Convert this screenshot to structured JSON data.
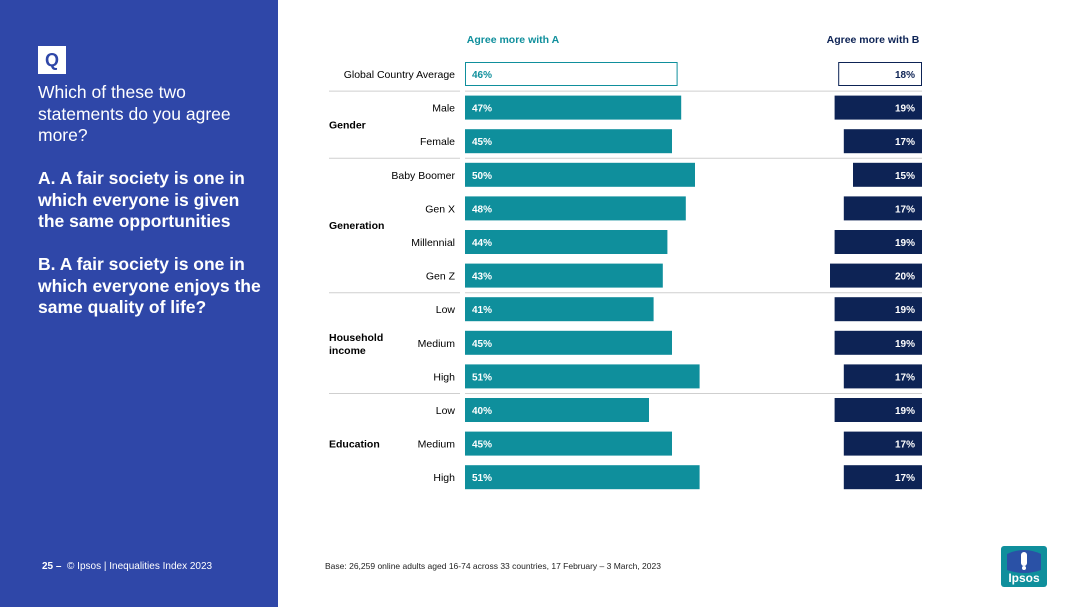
{
  "question": {
    "badge": "Q",
    "text": "Which of these two statements do you agree more?",
    "statement_a": "A. A fair society is one in which everyone is given the same opportunities",
    "statement_b": "B. A fair society is one in which everyone enjoys the same quality of life?"
  },
  "footer": {
    "page_number": "25 –",
    "copyright": "© Ipsos | Inequalities Index 2023",
    "base": "Base: 26,259 online adults aged 16-74 across 33 countries, 17 February – 3 March, 2023",
    "logo_text": "Ipsos"
  },
  "colors": {
    "panel": "#2f47a8",
    "bar_a": "#0f8f9c",
    "bar_b": "#0d2355",
    "head_a": "#0f8f9c",
    "head_b": "#0d2355"
  },
  "chart_data": {
    "type": "bar",
    "orientation": "horizontal-diverging",
    "series": [
      {
        "name": "Agree more with A",
        "values": [
          46,
          47,
          45,
          50,
          48,
          44,
          43,
          41,
          45,
          51,
          40,
          45,
          51
        ]
      },
      {
        "name": "Agree more with B",
        "values": [
          18,
          19,
          17,
          15,
          17,
          19,
          20,
          19,
          19,
          17,
          19,
          17,
          17
        ]
      }
    ],
    "categories": [
      "Global Country Average",
      "Male",
      "Female",
      "Baby Boomer",
      "Gen X",
      "Millennial",
      "Gen Z",
      "Low",
      "Medium",
      "High",
      "Low",
      "Medium",
      "High"
    ],
    "groups": [
      {
        "name": "Gender",
        "start": 1,
        "end": 2
      },
      {
        "name": "Generation",
        "start": 3,
        "end": 6
      },
      {
        "name": "Household income",
        "start": 7,
        "end": 9
      },
      {
        "name": "Education",
        "start": 10,
        "end": 12
      }
    ],
    "value_labels_a": [
      "46%",
      "47%",
      "45%",
      "50%",
      "48%",
      "44%",
      "43%",
      "41%",
      "45%",
      "51%",
      "40%",
      "45%",
      "51%"
    ],
    "value_labels_b": [
      "18%",
      "19%",
      "17%",
      "15%",
      "17%",
      "19%",
      "20%",
      "19%",
      "19%",
      "17%",
      "19%",
      "17%",
      "17%"
    ],
    "title": "",
    "xlabel": "",
    "ylabel": ""
  }
}
